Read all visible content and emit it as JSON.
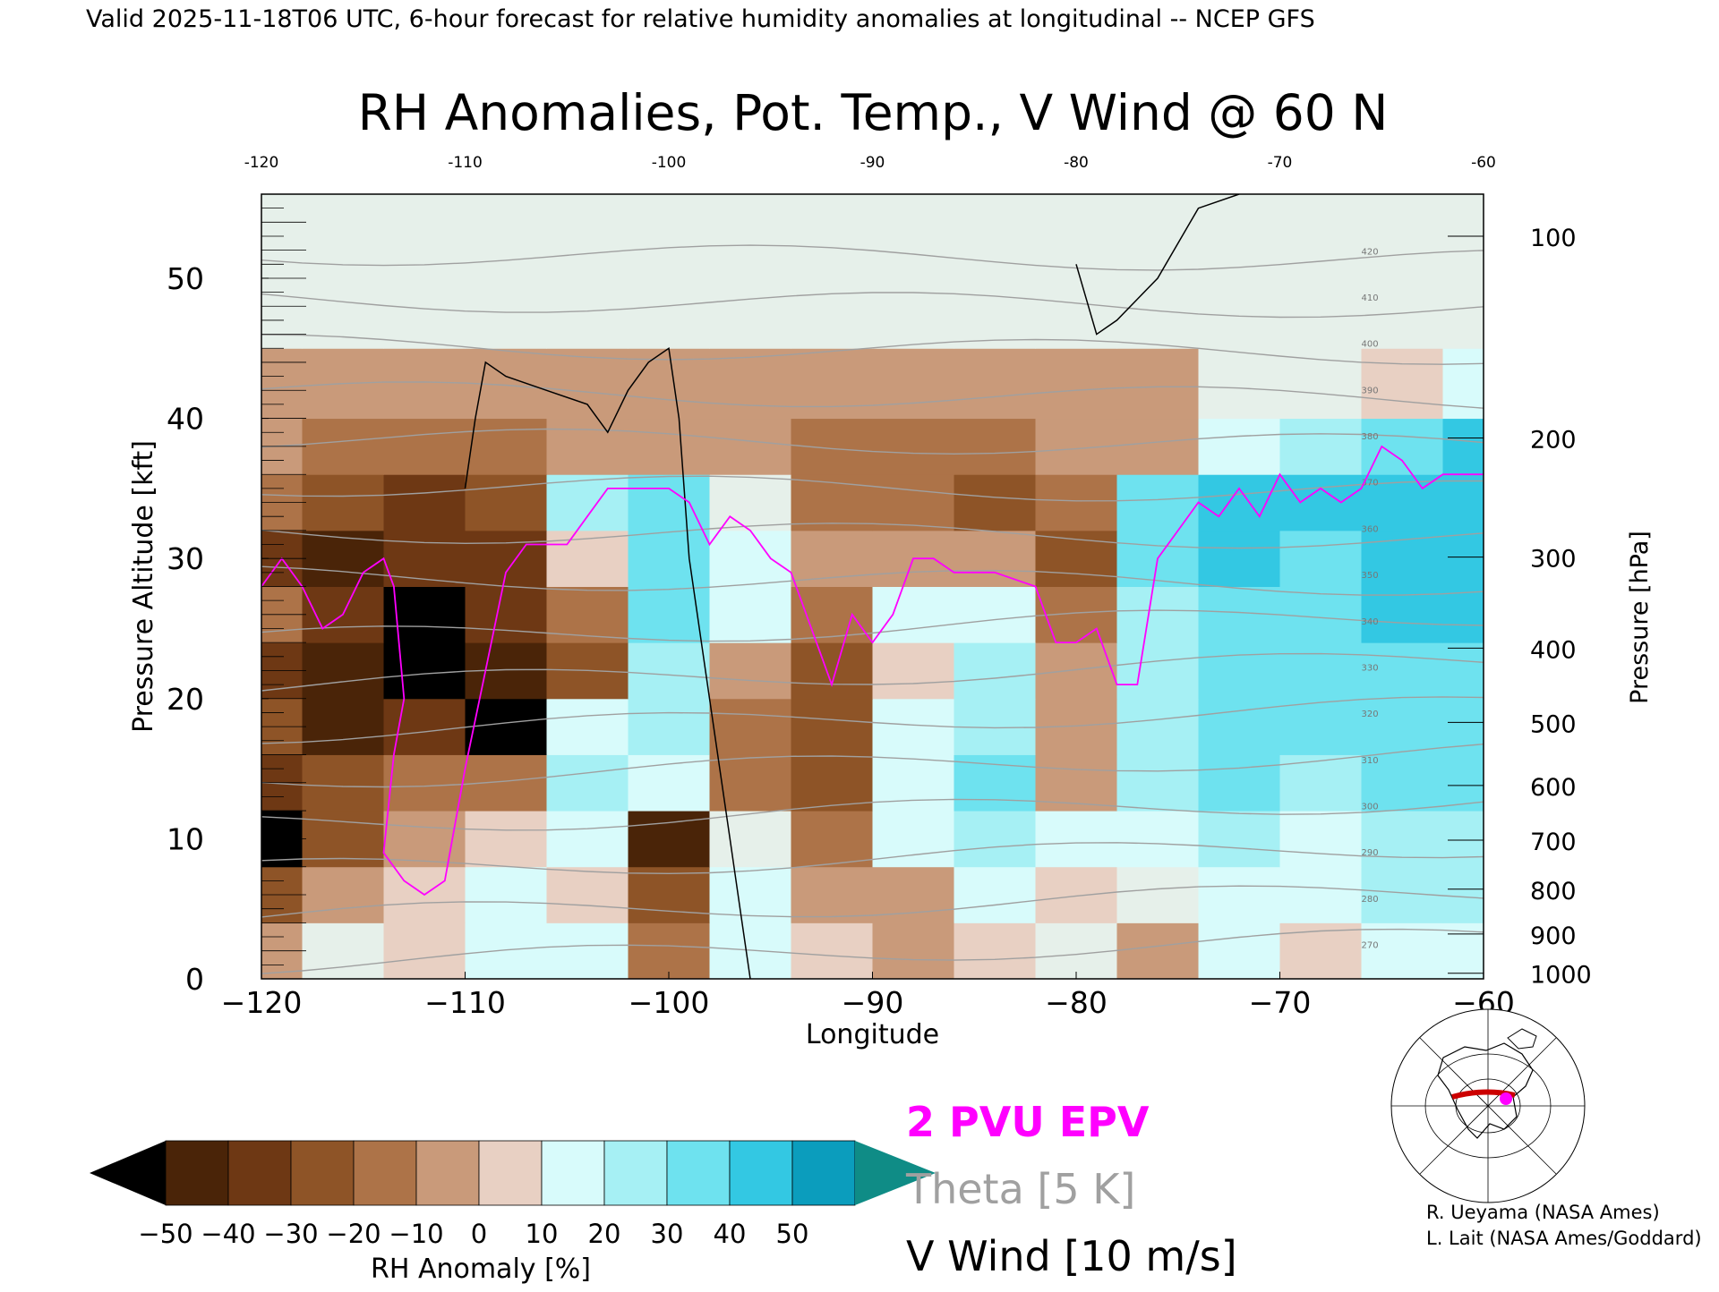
{
  "header": {
    "valid_line": "Valid 2025-11-18T06 UTC, 6-hour forecast for relative humidity anomalies at longitudinal -- NCEP GFS",
    "title": "RH Anomalies, Pot. Temp., V Wind @ 60 N"
  },
  "chart_data": {
    "type": "heatmap",
    "title": "RH Anomalies, Pot. Temp., V Wind @ 60 N",
    "xlabel": "Longitude",
    "ylabel_left": "Pressure Altitude [kft]",
    "ylabel_right": "Pressure [hPa]",
    "xlim": [
      -120,
      -60
    ],
    "ylim_kft": [
      0,
      56
    ],
    "x_ticks": [
      -120,
      -110,
      -100,
      -90,
      -80,
      -70,
      -60
    ],
    "x_tick_labels": [
      "−120",
      "−110",
      "−100",
      "−90",
      "−80",
      "−70",
      "−60"
    ],
    "y_ticks_kft": [
      0,
      10,
      20,
      30,
      40,
      50
    ],
    "y_tick_labels_kft": [
      "0",
      "10",
      "20",
      "30",
      "40",
      "50"
    ],
    "pressure_ticks": [
      {
        "hpa": "100",
        "kft": 53.0
      },
      {
        "hpa": "200",
        "kft": 38.6
      },
      {
        "hpa": "300",
        "kft": 30.1
      },
      {
        "hpa": "400",
        "kft": 23.6
      },
      {
        "hpa": "500",
        "kft": 18.3
      },
      {
        "hpa": "600",
        "kft": 13.8
      },
      {
        "hpa": "700",
        "kft": 9.9
      },
      {
        "hpa": "800",
        "kft": 6.4
      },
      {
        "hpa": "900",
        "kft": 3.2
      },
      {
        "hpa": "1000",
        "kft": 0.4
      }
    ],
    "rh_anomaly_grid": {
      "lon": [
        -120,
        -116,
        -112,
        -108,
        -104,
        -100,
        -96,
        -92,
        -88,
        -84,
        -80,
        -76,
        -72,
        -68,
        -64,
        -60
      ],
      "alt_kft": [
        2,
        6,
        10,
        14,
        18,
        22,
        26,
        30,
        34,
        38,
        42,
        48,
        54
      ],
      "values": [
        [
          -10,
          0,
          5,
          10,
          15,
          -20,
          10,
          5,
          -5,
          5,
          0,
          -5,
          10,
          5,
          10,
          10
        ],
        [
          -30,
          -5,
          5,
          10,
          5,
          -30,
          10,
          -10,
          -10,
          15,
          5,
          0,
          15,
          10,
          20,
          20
        ],
        [
          -50,
          -30,
          -10,
          5,
          10,
          -45,
          0,
          -20,
          10,
          25,
          10,
          10,
          25,
          15,
          25,
          25
        ],
        [
          -40,
          -30,
          -20,
          -15,
          20,
          15,
          -15,
          -25,
          15,
          30,
          -10,
          20,
          30,
          25,
          30,
          30
        ],
        [
          -30,
          -45,
          -40,
          -50,
          15,
          25,
          -20,
          -30,
          10,
          25,
          -10,
          20,
          30,
          30,
          35,
          35
        ],
        [
          -35,
          -45,
          -50,
          -45,
          -25,
          25,
          -10,
          -30,
          5,
          20,
          -5,
          25,
          35,
          30,
          35,
          35
        ],
        [
          -20,
          -35,
          -50,
          -35,
          -20,
          30,
          10,
          -15,
          10,
          15,
          -15,
          25,
          35,
          35,
          40,
          40
        ],
        [
          -35,
          -45,
          -40,
          -35,
          5,
          35,
          15,
          -10,
          -5,
          -10,
          -30,
          30,
          40,
          35,
          40,
          40
        ],
        [
          -20,
          -30,
          -35,
          -30,
          25,
          30,
          0,
          -20,
          -20,
          -25,
          -20,
          35,
          40,
          40,
          45,
          45
        ],
        [
          -10,
          -15,
          -20,
          -15,
          -5,
          -5,
          -10,
          -15,
          -15,
          -15,
          -10,
          -5,
          15,
          20,
          30,
          40
        ],
        [
          -5,
          -10,
          -10,
          -10,
          -10,
          -10,
          -10,
          -10,
          -10,
          -10,
          -5,
          -5,
          0,
          0,
          5,
          10
        ],
        [
          0,
          0,
          0,
          0,
          0,
          0,
          0,
          0,
          0,
          0,
          0,
          0,
          0,
          0,
          0,
          0
        ],
        [
          0,
          0,
          0,
          0,
          0,
          0,
          0,
          0,
          0,
          0,
          0,
          0,
          0,
          0,
          0,
          0
        ]
      ]
    },
    "theta_contours": {
      "labels": [
        "270",
        "280",
        "290",
        "300",
        "310",
        "320",
        "330",
        "340",
        "350",
        "360",
        "370",
        "380",
        "390",
        "400",
        "410",
        "420"
      ]
    },
    "epv_2pvu_line": [
      [
        -120,
        28
      ],
      [
        -119,
        30
      ],
      [
        -118,
        28
      ],
      [
        -117,
        25
      ],
      [
        -116,
        26
      ],
      [
        -115,
        29
      ],
      [
        -114,
        30
      ],
      [
        -113.5,
        28
      ],
      [
        -113,
        20
      ],
      [
        -113.5,
        16
      ],
      [
        -114,
        9
      ],
      [
        -113,
        7
      ],
      [
        -112,
        6
      ],
      [
        -111,
        7
      ],
      [
        -110,
        15
      ],
      [
        -109,
        22
      ],
      [
        -108,
        29
      ],
      [
        -107,
        31
      ],
      [
        -105,
        31
      ],
      [
        -104,
        33
      ],
      [
        -103,
        35
      ],
      [
        -101,
        35
      ],
      [
        -100,
        35
      ],
      [
        -99,
        34
      ],
      [
        -98,
        31
      ],
      [
        -97,
        33
      ],
      [
        -96,
        32
      ],
      [
        -95,
        30
      ],
      [
        -94,
        29
      ],
      [
        -93,
        25
      ],
      [
        -92,
        21
      ],
      [
        -91,
        26
      ],
      [
        -90,
        24
      ],
      [
        -89,
        26
      ],
      [
        -88,
        30
      ],
      [
        -87,
        30
      ],
      [
        -86,
        29
      ],
      [
        -84,
        29
      ],
      [
        -82,
        28
      ],
      [
        -81,
        24
      ],
      [
        -80,
        24
      ],
      [
        -79,
        25
      ],
      [
        -78,
        21
      ],
      [
        -77,
        21
      ],
      [
        -76,
        30
      ],
      [
        -75,
        32
      ],
      [
        -74,
        34
      ],
      [
        -73,
        33
      ],
      [
        -72,
        35
      ],
      [
        -71,
        33
      ],
      [
        -70,
        36
      ],
      [
        -69,
        34
      ],
      [
        -68,
        35
      ],
      [
        -67,
        34
      ],
      [
        -66,
        35
      ],
      [
        -65,
        38
      ],
      [
        -64,
        37
      ],
      [
        -63,
        35
      ],
      [
        -62,
        36
      ],
      [
        -61,
        36
      ],
      [
        -60,
        36
      ]
    ],
    "v_wind_zero_contour": [
      [
        -110,
        35
      ],
      [
        -109.5,
        40
      ],
      [
        -109,
        44
      ],
      [
        -108,
        43
      ],
      [
        -106,
        42
      ],
      [
        -104,
        41
      ],
      [
        -103,
        39
      ],
      [
        -102,
        42
      ],
      [
        -101,
        44
      ],
      [
        -100,
        45
      ],
      [
        -99.5,
        40
      ],
      [
        -99,
        30
      ],
      [
        -98,
        20
      ],
      [
        -97,
        10
      ],
      [
        -96.5,
        5
      ],
      [
        -96,
        0
      ]
    ],
    "v_wind_tenm_contour": [
      [
        -80,
        51
      ],
      [
        -79,
        46
      ],
      [
        -78,
        47
      ],
      [
        -76,
        50
      ],
      [
        -74,
        55
      ],
      [
        -72,
        56
      ]
    ],
    "legend": {
      "epv": "2 PVU EPV",
      "theta": "Theta [5 K]",
      "vwind": "V Wind [10 m/s]",
      "epv_color": "#ff00ff",
      "theta_color": "#a0a0a0",
      "vwind_color": "#000000"
    },
    "colorbar": {
      "label": "RH Anomaly [%]",
      "tick_labels": [
        "−50",
        "−40",
        "−30",
        "−20",
        "−10",
        "0",
        "10",
        "20",
        "30",
        "40",
        "50"
      ],
      "colors": [
        "#4a2408",
        "#6e3814",
        "#8e5427",
        "#ad7348",
        "#c99a7a",
        "#e8d0c3",
        "#d8fbfb",
        "#a6f0f4",
        "#6ee2ef",
        "#33c8e3",
        "#0b9dbd"
      ],
      "under_color": "#000000",
      "over_color": "#0f8c86"
    }
  },
  "credits": {
    "line1": "R. Ueyama (NASA Ames)",
    "line2": "L. Lait (NASA Ames/Goddard)"
  },
  "inset": {
    "highlight_color": "#cc0000",
    "marker_color": "#ff00ff"
  }
}
